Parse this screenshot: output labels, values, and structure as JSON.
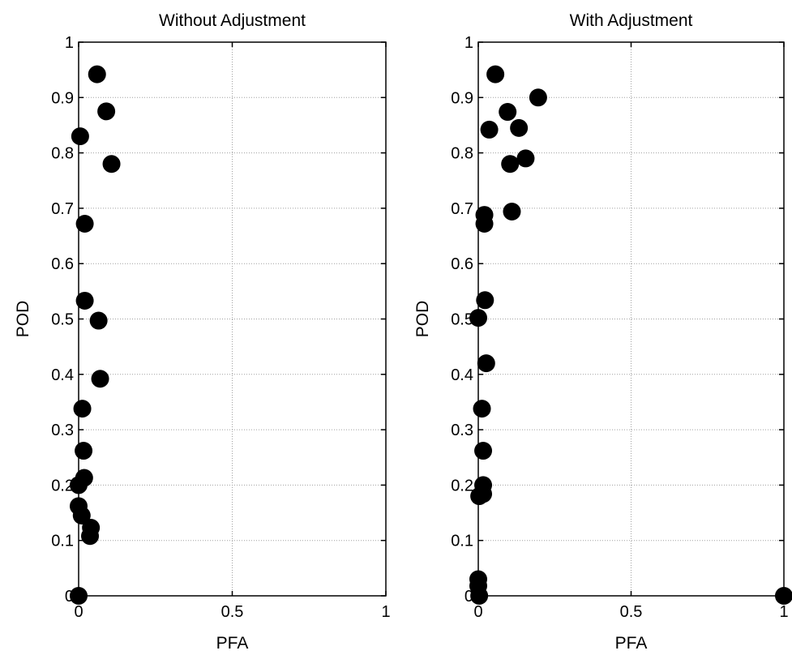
{
  "chart_data": [
    {
      "type": "scatter",
      "title": "Without Adjustment",
      "xlabel": "PFA",
      "ylabel": "POD",
      "xlim": [
        0,
        1
      ],
      "ylim": [
        0,
        1
      ],
      "grid": true,
      "xticks": [
        "0",
        "0.5",
        "1"
      ],
      "yticks": [
        "0",
        "0.1",
        "0.2",
        "0.3",
        "0.4",
        "0.5",
        "0.6",
        "0.7",
        "0.8",
        "0.9",
        "1"
      ],
      "points": [
        {
          "x": 0.06,
          "y": 0.942
        },
        {
          "x": 0.09,
          "y": 0.875
        },
        {
          "x": 0.005,
          "y": 0.83
        },
        {
          "x": 0.107,
          "y": 0.78
        },
        {
          "x": 0.02,
          "y": 0.672
        },
        {
          "x": 0.02,
          "y": 0.533
        },
        {
          "x": 0.065,
          "y": 0.497
        },
        {
          "x": 0.07,
          "y": 0.392
        },
        {
          "x": 0.012,
          "y": 0.338
        },
        {
          "x": 0.016,
          "y": 0.262
        },
        {
          "x": 0.018,
          "y": 0.213
        },
        {
          "x": 0.0,
          "y": 0.2
        },
        {
          "x": 0.0,
          "y": 0.162
        },
        {
          "x": 0.01,
          "y": 0.145
        },
        {
          "x": 0.04,
          "y": 0.123
        },
        {
          "x": 0.037,
          "y": 0.108
        },
        {
          "x": 0.0,
          "y": 0.0
        }
      ]
    },
    {
      "type": "scatter",
      "title": "With Adjustment",
      "xlabel": "PFA",
      "ylabel": "POD",
      "xlim": [
        0,
        1
      ],
      "ylim": [
        0,
        1
      ],
      "grid": true,
      "xticks": [
        "0",
        "0.5",
        "1"
      ],
      "yticks": [
        "0",
        "0.1",
        "0.2",
        "0.3",
        "0.4",
        "0.5",
        "0.6",
        "0.7",
        "0.8",
        "0.9",
        "1"
      ],
      "points": [
        {
          "x": 0.056,
          "y": 0.942
        },
        {
          "x": 0.196,
          "y": 0.9
        },
        {
          "x": 0.096,
          "y": 0.874
        },
        {
          "x": 0.036,
          "y": 0.842
        },
        {
          "x": 0.133,
          "y": 0.845
        },
        {
          "x": 0.155,
          "y": 0.79
        },
        {
          "x": 0.104,
          "y": 0.78
        },
        {
          "x": 0.11,
          "y": 0.694
        },
        {
          "x": 0.02,
          "y": 0.688
        },
        {
          "x": 0.02,
          "y": 0.672
        },
        {
          "x": 0.022,
          "y": 0.534
        },
        {
          "x": 0.0,
          "y": 0.502
        },
        {
          "x": 0.026,
          "y": 0.42
        },
        {
          "x": 0.012,
          "y": 0.338
        },
        {
          "x": 0.016,
          "y": 0.262
        },
        {
          "x": 0.016,
          "y": 0.2
        },
        {
          "x": 0.016,
          "y": 0.184
        },
        {
          "x": 0.003,
          "y": 0.18
        },
        {
          "x": 0.0,
          "y": 0.03
        },
        {
          "x": 0.0,
          "y": 0.018
        },
        {
          "x": 0.003,
          "y": 0.0
        },
        {
          "x": 1.0,
          "y": 0.0
        }
      ]
    }
  ]
}
